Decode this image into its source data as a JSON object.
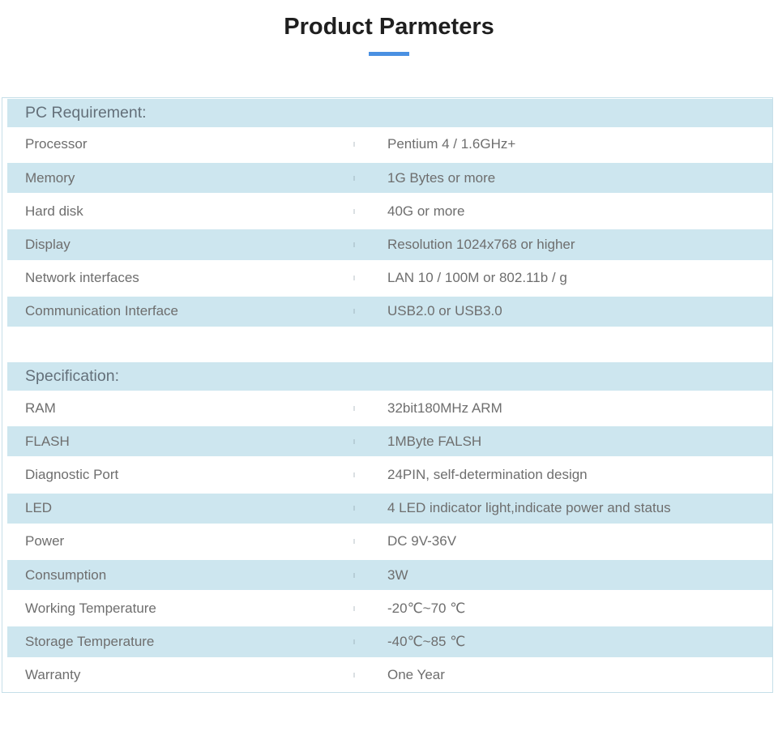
{
  "page": {
    "title": "Product Parmeters"
  },
  "colors": {
    "accent_underline": "#4a90e2",
    "row_highlight": "#cde6ef",
    "table_border": "#c6dfe9",
    "text": "#6e6e6e"
  },
  "table": {
    "sections": [
      {
        "header": "PC Requirement:",
        "rows": [
          {
            "label": "Processor",
            "value": "Pentium 4 / 1.6GHz+"
          },
          {
            "label": "Memory",
            "value": "1G Bytes or more"
          },
          {
            "label": "Hard disk",
            "value": "40G or more"
          },
          {
            "label": "Display",
            "value": "Resolution 1024x768 or higher"
          },
          {
            "label": "Network interfaces",
            "value": "LAN 10 / 100M or 802.11b / g"
          },
          {
            "label": "Communication Interface",
            "value": "USB2.0 or USB3.0"
          }
        ]
      },
      {
        "header": "Specification:",
        "rows": [
          {
            "label": "RAM",
            "value": "32bit180MHz ARM"
          },
          {
            "label": "FLASH",
            "value": "1MByte FALSH"
          },
          {
            "label": "Diagnostic Port",
            "value": "24PIN, self-determination design"
          },
          {
            "label": "LED",
            "value": "4 LED indicator light,indicate power and status"
          },
          {
            "label": "Power",
            "value": "DC 9V-36V"
          },
          {
            "label": "Consumption",
            "value": "3W"
          },
          {
            "label": "Working Temperature",
            "value": "-20℃~70 ℃"
          },
          {
            "label": "Storage Temperature",
            "value": "-40℃~85 ℃"
          },
          {
            "label": "Warranty",
            "value": "One Year"
          }
        ]
      }
    ]
  }
}
